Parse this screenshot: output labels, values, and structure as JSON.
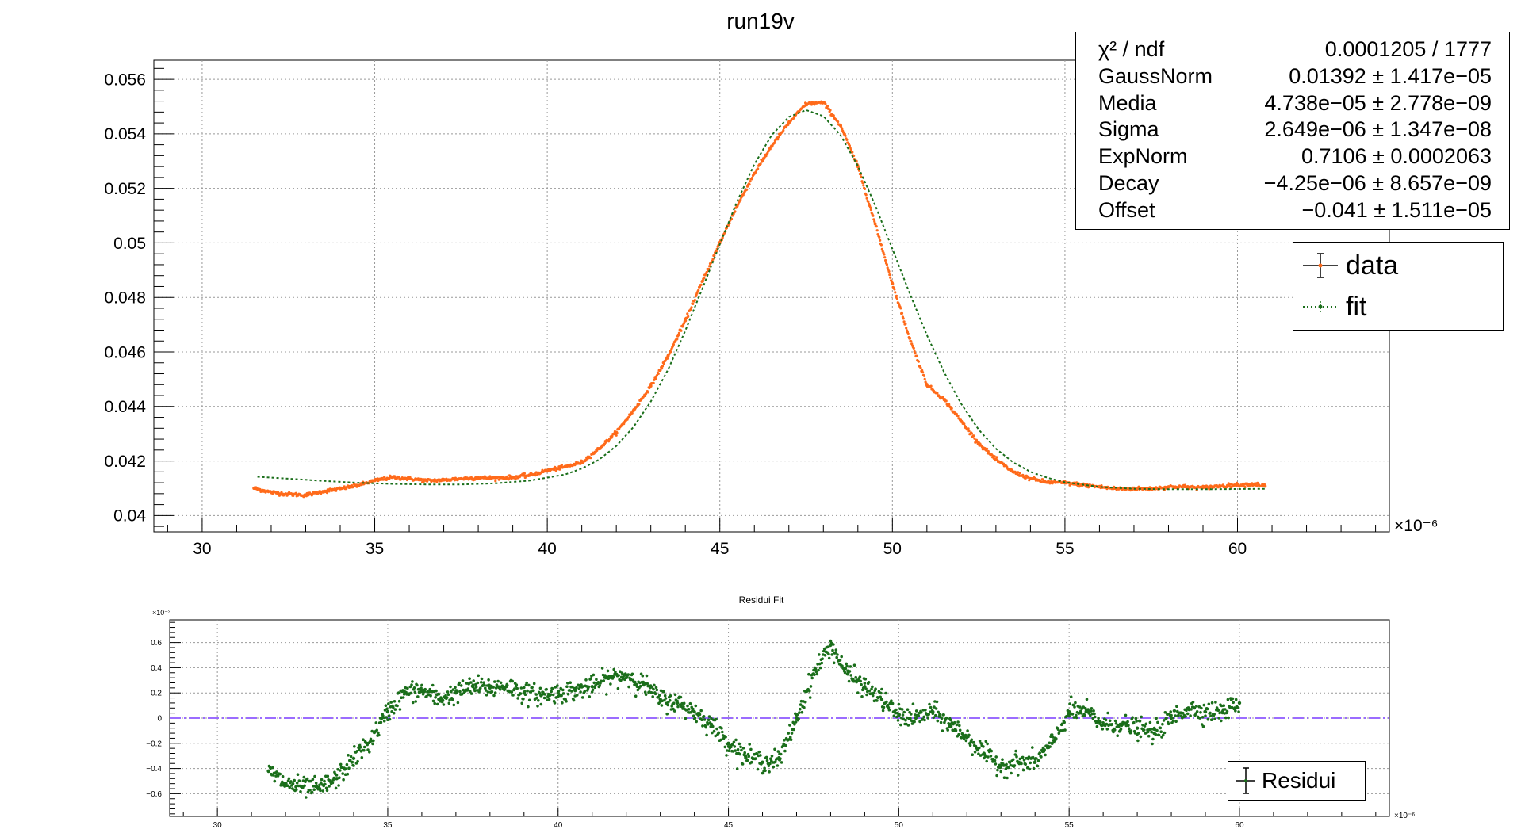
{
  "chart_data": [
    {
      "type": "scatter",
      "title": "run19v",
      "xlabel": "",
      "ylabel": "",
      "x_exponent_label": "×10⁻⁶",
      "xlim": [
        28.6,
        64.4
      ],
      "ylim": [
        0.0394,
        0.0567
      ],
      "x_ticks": [
        30,
        35,
        40,
        45,
        50,
        55,
        60
      ],
      "y_ticks": [
        0.04,
        0.042,
        0.044,
        0.046,
        0.048,
        0.05,
        0.052,
        0.054,
        0.056
      ],
      "x_tick_labels": [
        "30",
        "35",
        "40",
        "45",
        "50",
        "55",
        "60"
      ],
      "y_tick_labels": [
        "0.04",
        "0.042",
        "0.044",
        "0.046",
        "0.048",
        "0.05",
        "0.052",
        "0.054",
        "0.056"
      ],
      "grid": true,
      "legend_position": "top-right",
      "colors": {
        "data": "#ff6a1a",
        "fit": "#1a6e1a"
      },
      "series": [
        {
          "name": "data",
          "style": "points",
          "x": [
            31.5,
            32.0,
            32.5,
            33.0,
            33.5,
            34.0,
            34.5,
            35.0,
            35.5,
            36.0,
            36.5,
            37.0,
            37.5,
            38.0,
            38.5,
            39.0,
            39.5,
            40.0,
            40.5,
            41.0,
            41.5,
            42.0,
            42.5,
            43.0,
            43.5,
            44.0,
            44.5,
            45.0,
            45.5,
            46.0,
            46.5,
            47.0,
            47.5,
            48.0,
            48.5,
            49.0,
            49.5,
            50.0,
            50.5,
            51.0,
            51.5,
            52.0,
            52.5,
            53.0,
            53.5,
            54.0,
            54.5,
            55.0,
            55.5,
            56.0,
            56.5,
            57.0,
            57.5,
            58.0,
            58.5,
            59.0,
            59.5,
            60.0,
            60.5,
            60.8
          ],
          "y": [
            0.041,
            0.04085,
            0.04078,
            0.04075,
            0.04088,
            0.04098,
            0.0411,
            0.04128,
            0.0414,
            0.04135,
            0.04128,
            0.0413,
            0.04135,
            0.04138,
            0.04138,
            0.0414,
            0.04148,
            0.04165,
            0.04178,
            0.04195,
            0.04245,
            0.04305,
            0.04385,
            0.04475,
            0.04585,
            0.04715,
            0.0486,
            0.05,
            0.05135,
            0.05255,
            0.05355,
            0.0544,
            0.0551,
            0.05515,
            0.0543,
            0.0528,
            0.0507,
            0.0485,
            0.0465,
            0.0448,
            0.04425,
            0.04345,
            0.04265,
            0.04205,
            0.0416,
            0.04135,
            0.04122,
            0.0412,
            0.04112,
            0.04105,
            0.04098,
            0.04098,
            0.04098,
            0.04105,
            0.04105,
            0.04102,
            0.04108,
            0.04112,
            0.04115,
            0.04108
          ]
        },
        {
          "name": "fit",
          "style": "dotted-line",
          "x": [
            31.6,
            32.5,
            33.5,
            34.5,
            35.5,
            36.5,
            37.5,
            38.5,
            39.5,
            40.5,
            41.0,
            41.5,
            42.0,
            42.5,
            43.0,
            43.5,
            44.0,
            44.5,
            45.0,
            45.5,
            46.0,
            46.5,
            47.0,
            47.5,
            48.0,
            48.5,
            49.0,
            49.5,
            50.0,
            50.5,
            51.0,
            51.5,
            52.0,
            52.5,
            53.0,
            53.5,
            54.0,
            54.5,
            55.0,
            56.0,
            57.0,
            58.0,
            59.0,
            60.0,
            60.8
          ],
          "y": [
            0.04142,
            0.04135,
            0.04127,
            0.0412,
            0.04116,
            0.04114,
            0.04114,
            0.04118,
            0.04128,
            0.0415,
            0.04172,
            0.04205,
            0.04255,
            0.04325,
            0.04418,
            0.04535,
            0.04678,
            0.04835,
            0.04995,
            0.05152,
            0.05288,
            0.05395,
            0.05462,
            0.05487,
            0.05465,
            0.05395,
            0.05282,
            0.05138,
            0.04978,
            0.04815,
            0.04662,
            0.04525,
            0.04408,
            0.04315,
            0.04245,
            0.04195,
            0.0416,
            0.04138,
            0.04122,
            0.04105,
            0.04098,
            0.04096,
            0.04096,
            0.04097,
            0.04098
          ]
        }
      ]
    },
    {
      "type": "scatter",
      "title": "Residui Fit",
      "xlabel": "",
      "ylabel": "",
      "x_exponent_label": "×10⁻⁶",
      "y_exponent_label": "×10⁻³",
      "xlim": [
        28.6,
        64.4
      ],
      "ylim": [
        -0.78,
        0.78
      ],
      "x_ticks": [
        30,
        35,
        40,
        45,
        50,
        55,
        60
      ],
      "y_ticks": [
        -0.6,
        -0.4,
        -0.2,
        0,
        0.2,
        0.4,
        0.6
      ],
      "x_tick_labels": [
        "30",
        "35",
        "40",
        "45",
        "50",
        "55",
        "60"
      ],
      "y_tick_labels": [
        "−0.6",
        "−0.4",
        "−0.2",
        "0",
        "0.2",
        "0.4",
        "0.6"
      ],
      "grid": true,
      "legend_position": "bottom-right",
      "colors": {
        "residui": "#1a6e1a",
        "zero_line": "#7a3cff"
      },
      "series": [
        {
          "name": "Residui",
          "style": "points",
          "x": [
            31.5,
            32.0,
            32.5,
            33.0,
            33.5,
            34.0,
            34.5,
            35.0,
            35.5,
            36.0,
            36.5,
            37.0,
            37.5,
            38.0,
            38.5,
            39.0,
            39.5,
            40.0,
            40.5,
            41.0,
            41.5,
            42.0,
            42.5,
            43.0,
            43.5,
            44.0,
            44.5,
            45.0,
            45.5,
            46.0,
            46.5,
            47.0,
            47.5,
            48.0,
            48.5,
            49.0,
            49.5,
            50.0,
            50.5,
            51.0,
            51.5,
            52.0,
            52.5,
            53.0,
            53.5,
            54.0,
            54.5,
            55.0,
            55.5,
            56.0,
            56.5,
            57.0,
            57.5,
            58.0,
            58.5,
            59.0,
            59.5,
            60.0
          ],
          "y": [
            -0.42,
            -0.52,
            -0.55,
            -0.56,
            -0.48,
            -0.32,
            -0.18,
            0.05,
            0.2,
            0.22,
            0.15,
            0.2,
            0.25,
            0.24,
            0.26,
            0.2,
            0.18,
            0.2,
            0.22,
            0.25,
            0.32,
            0.34,
            0.27,
            0.15,
            0.12,
            0.05,
            -0.05,
            -0.2,
            -0.3,
            -0.35,
            -0.33,
            0.0,
            0.35,
            0.58,
            0.35,
            0.25,
            0.15,
            0.02,
            0.0,
            0.05,
            -0.05,
            -0.15,
            -0.28,
            -0.38,
            -0.35,
            -0.35,
            -0.2,
            0.05,
            0.05,
            -0.05,
            -0.05,
            -0.08,
            -0.12,
            0.0,
            0.08,
            0.05,
            0.05,
            0.12
          ]
        }
      ]
    }
  ],
  "stats": {
    "rows": [
      {
        "name": "χ² / ndf",
        "value": "0.0001205 / 1777"
      },
      {
        "name": "GaussNorm",
        "value": "0.01392 ± 1.417e−05"
      },
      {
        "name": "Media",
        "value": "4.738e−05 ± 2.778e−09"
      },
      {
        "name": "Sigma",
        "value": "2.649e−06 ± 1.347e−08"
      },
      {
        "name": "ExpNorm",
        "value": "0.7106 ± 0.0002063"
      },
      {
        "name": "Decay",
        "value": "−4.25e−06 ± 8.657e−09"
      },
      {
        "name": "Offset",
        "value": "−0.041 ± 1.511e−05"
      }
    ]
  },
  "legend_main": {
    "data_label": "data",
    "fit_label": "fit"
  },
  "legend_residui": {
    "label": "Residui"
  }
}
